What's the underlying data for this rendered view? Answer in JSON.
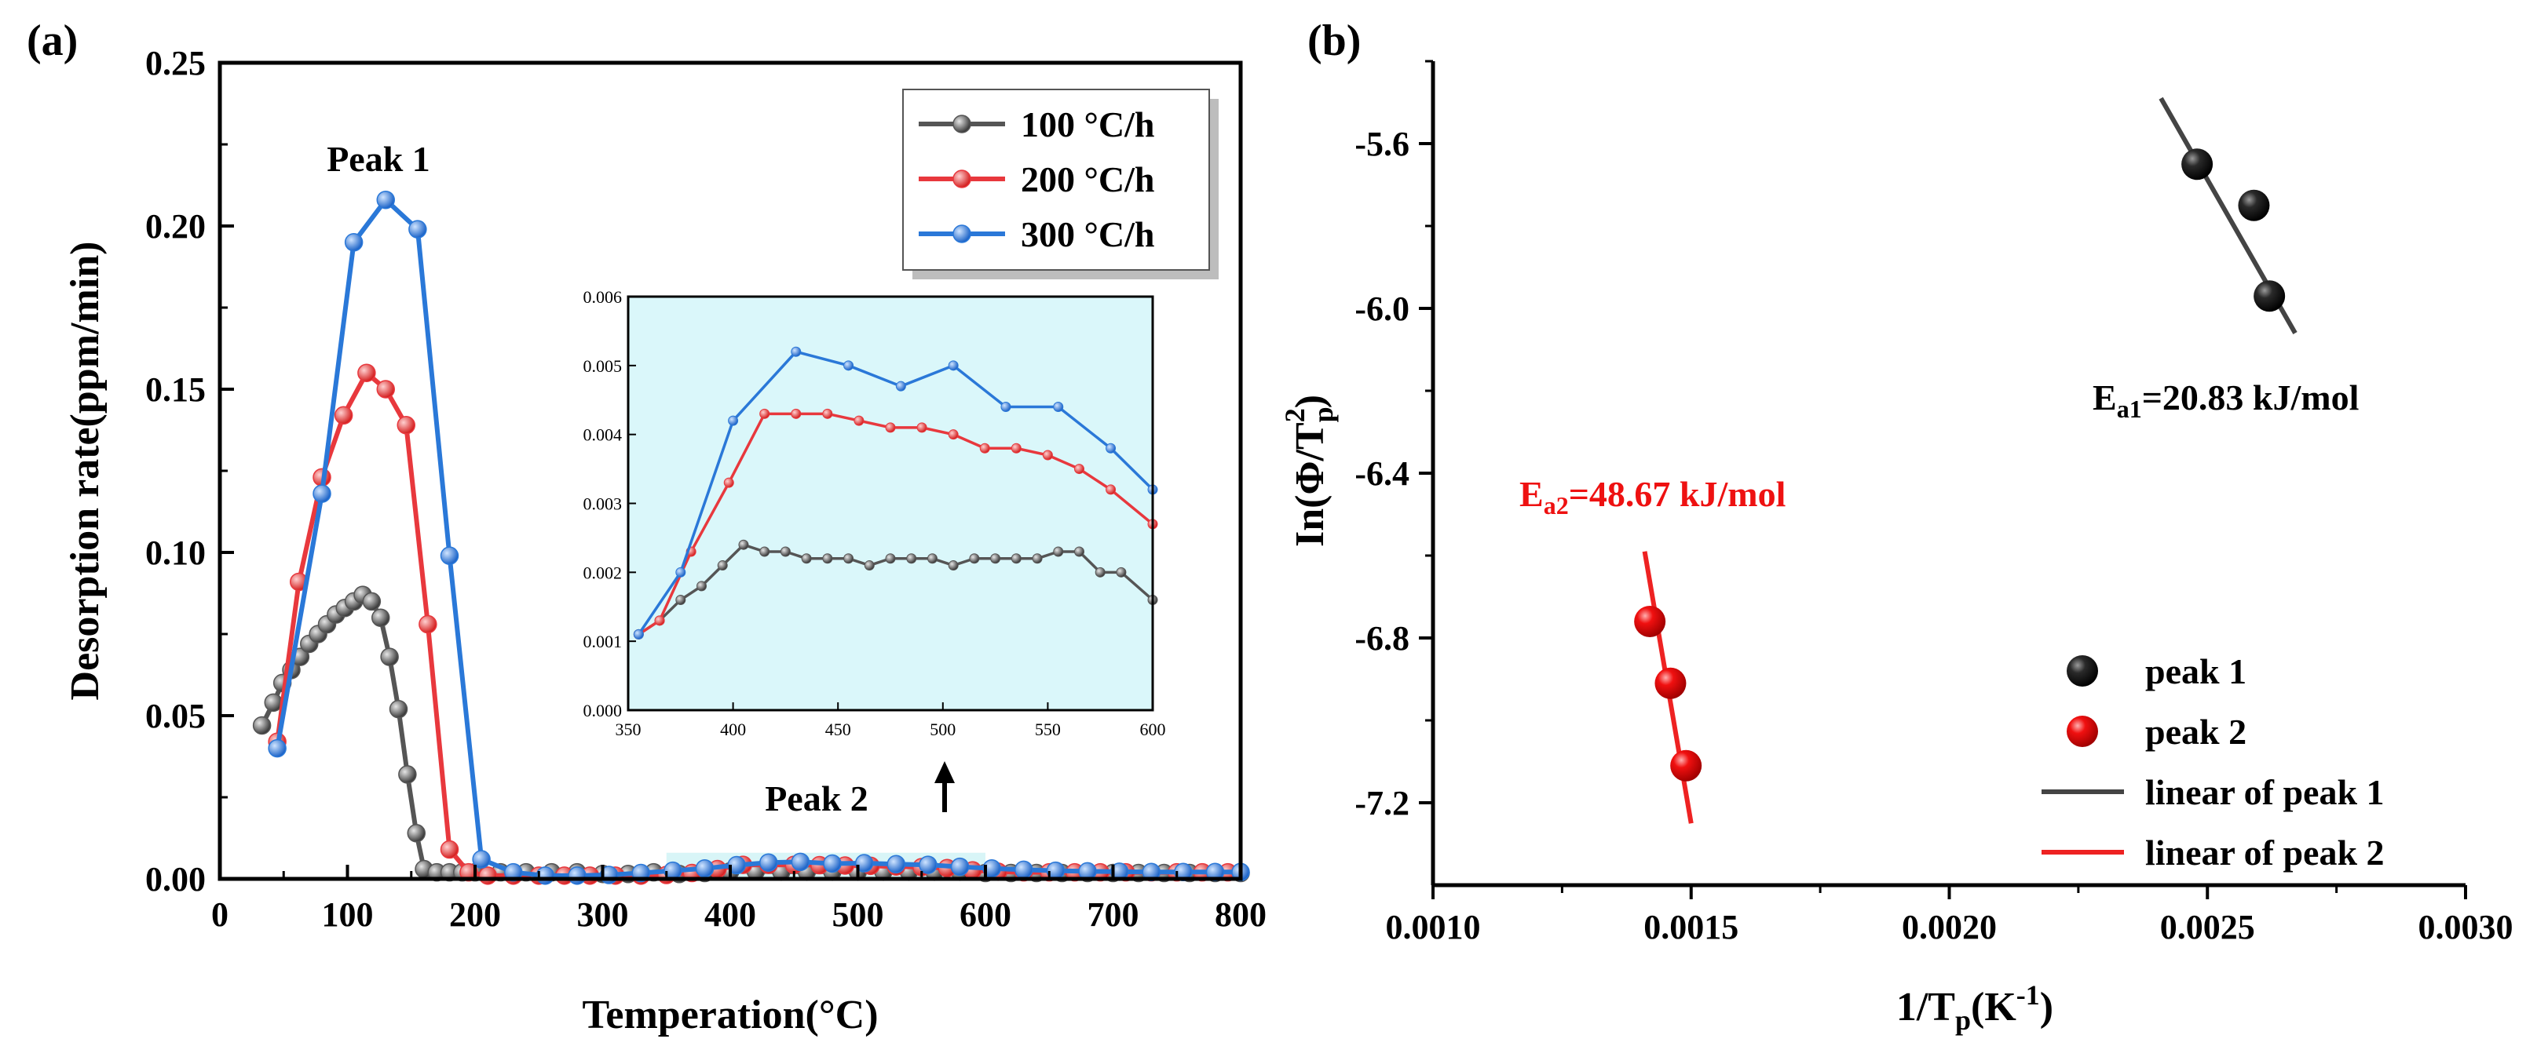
{
  "chart_data": [
    {
      "id": "a",
      "panel_label": "(a)",
      "type": "line",
      "xlabel": "Temperation(°C)",
      "ylabel": "Desorption rate(ppm/min)",
      "xlim": [
        0,
        800
      ],
      "ylim": [
        0,
        0.25
      ],
      "xticks": [
        "0",
        "100",
        "200",
        "300",
        "400",
        "500",
        "600",
        "700",
        "800"
      ],
      "yticks": [
        "0.00",
        "0.05",
        "0.10",
        "0.15",
        "0.20",
        "0.25"
      ],
      "annotations": [
        "Peak 1",
        "Peak 2"
      ],
      "legend_position": "top-right",
      "series": [
        {
          "name": "100 °C/h",
          "color": "#555555",
          "x": [
            33,
            42,
            49,
            56,
            63,
            70,
            77,
            84,
            91,
            98,
            105,
            112,
            119,
            126,
            133,
            140,
            147,
            154,
            160,
            170,
            180,
            190,
            200,
            220,
            240,
            260,
            280,
            300,
            320,
            340,
            360,
            380,
            400,
            420,
            440,
            460,
            480,
            500,
            520,
            540,
            560,
            580,
            600,
            620,
            640,
            660,
            680,
            700,
            720,
            740,
            760,
            780,
            800
          ],
          "y": [
            0.047,
            0.054,
            0.06,
            0.064,
            0.068,
            0.072,
            0.075,
            0.078,
            0.081,
            0.083,
            0.085,
            0.087,
            0.085,
            0.08,
            0.068,
            0.052,
            0.032,
            0.014,
            0.003,
            0.002,
            0.002,
            0.002,
            0.002,
            0.002,
            0.002,
            0.002,
            0.002,
            0.0015,
            0.0015,
            0.002,
            0.0015,
            0.0018,
            0.0023,
            0.0023,
            0.0022,
            0.0022,
            0.0022,
            0.0022,
            0.0022,
            0.0022,
            0.0022,
            0.0022,
            0.0018,
            0.0018,
            0.0018,
            0.0018,
            0.0018,
            0.0018,
            0.0018,
            0.0018,
            0.0018,
            0.0018,
            0.0018
          ]
        },
        {
          "name": "200 °C/h",
          "color": "#e8383d",
          "x": [
            45,
            62,
            80,
            97,
            115,
            130,
            146,
            163,
            180,
            195,
            210,
            230,
            250,
            270,
            290,
            310,
            330,
            350,
            370,
            390,
            410,
            430,
            450,
            470,
            490,
            510,
            530,
            550,
            570,
            590,
            610,
            630,
            650,
            670,
            690,
            710,
            730,
            750,
            770,
            790
          ],
          "y": [
            0.042,
            0.091,
            0.123,
            0.142,
            0.155,
            0.15,
            0.139,
            0.078,
            0.009,
            0.002,
            0.001,
            0.001,
            0.001,
            0.001,
            0.001,
            0.001,
            0.001,
            0.0012,
            0.0018,
            0.003,
            0.0043,
            0.0043,
            0.0043,
            0.0042,
            0.0041,
            0.004,
            0.0038,
            0.0036,
            0.0033,
            0.0026,
            0.0022,
            0.002,
            0.002,
            0.002,
            0.002,
            0.002,
            0.002,
            0.002,
            0.002,
            0.002
          ]
        },
        {
          "name": "300 °C/h",
          "color": "#2a78d8",
          "x": [
            45,
            80,
            105,
            130,
            155,
            180,
            205,
            230,
            255,
            280,
            305,
            330,
            355,
            380,
            405,
            430,
            455,
            480,
            505,
            530,
            555,
            580,
            605,
            630,
            655,
            680,
            705,
            730,
            755,
            780,
            800
          ],
          "y": [
            0.04,
            0.118,
            0.195,
            0.208,
            0.199,
            0.099,
            0.006,
            0.002,
            0.001,
            0.001,
            0.0012,
            0.0018,
            0.0025,
            0.0032,
            0.0042,
            0.005,
            0.0052,
            0.0047,
            0.0048,
            0.0045,
            0.0043,
            0.0037,
            0.0032,
            0.0028,
            0.0025,
            0.0023,
            0.0022,
            0.0021,
            0.0021,
            0.0021,
            0.0021
          ]
        }
      ],
      "peak2_region": [
        350,
        600
      ],
      "inset": {
        "type": "line",
        "xlim": [
          350,
          600
        ],
        "ylim": [
          0,
          0.006
        ],
        "xticks": [
          "350",
          "400",
          "450",
          "500",
          "550",
          "600"
        ],
        "yticks": [
          "0.000",
          "0.001",
          "0.002",
          "0.003",
          "0.004",
          "0.005",
          "0.006"
        ],
        "series": [
          {
            "name": "100 °C/h",
            "x": [
              355,
              365,
              375,
              385,
              395,
              405,
              415,
              425,
              435,
              445,
              455,
              465,
              475,
              485,
              495,
              505,
              515,
              525,
              535,
              545,
              555,
              565,
              575,
              585,
              600
            ],
            "y": [
              0.0011,
              0.0013,
              0.0016,
              0.0018,
              0.0021,
              0.0024,
              0.0023,
              0.0023,
              0.0022,
              0.0022,
              0.0022,
              0.0021,
              0.0022,
              0.0022,
              0.0022,
              0.0021,
              0.0022,
              0.0022,
              0.0022,
              0.0022,
              0.0023,
              0.0023,
              0.002,
              0.002,
              0.0016
            ]
          },
          {
            "name": "200 °C/h",
            "x": [
              355,
              365,
              380,
              398,
              415,
              430,
              445,
              460,
              475,
              490,
              505,
              520,
              535,
              550,
              565,
              580,
              600
            ],
            "y": [
              0.0011,
              0.0013,
              0.0023,
              0.0033,
              0.0043,
              0.0043,
              0.0043,
              0.0042,
              0.0041,
              0.0041,
              0.004,
              0.0038,
              0.0038,
              0.0037,
              0.0035,
              0.0032,
              0.0027
            ]
          },
          {
            "name": "300 °C/h",
            "x": [
              355,
              375,
              400,
              430,
              455,
              480,
              505,
              530,
              555,
              580,
              600
            ],
            "y": [
              0.0011,
              0.002,
              0.0042,
              0.0052,
              0.005,
              0.0047,
              0.005,
              0.0044,
              0.0044,
              0.0038,
              0.0032
            ]
          }
        ]
      }
    },
    {
      "id": "b",
      "panel_label": "(b)",
      "type": "scatter",
      "xlabel_main": "1/T",
      "xlabel_sub": "p",
      "xlabel_rest": "(K",
      "xlabel_sup": "-1",
      "xlabel_end": ")",
      "ylabel_main": "In(Φ/T",
      "ylabel_sub": "p",
      "ylabel_sup": "2",
      "ylabel_end": ")",
      "xlim": [
        0.001,
        0.003
      ],
      "ylim": [
        -7.4,
        -5.4
      ],
      "xticks": [
        "0.0010",
        "0.0015",
        "0.0020",
        "0.0025",
        "0.0030"
      ],
      "yticks": [
        "-5.6",
        "-6.0",
        "-6.4",
        "-6.8",
        "-7.2"
      ],
      "ytick_values": [
        -5.6,
        -6.0,
        -6.4,
        -6.8,
        -7.2
      ],
      "legend_position": "bottom-right",
      "series": [
        {
          "name": "peak 1",
          "color": "#111111",
          "x": [
            0.00248,
            0.00259,
            0.00262
          ],
          "y": [
            -5.65,
            -5.75,
            -5.97
          ]
        },
        {
          "name": "peak 2",
          "color": "#ee1111",
          "x": [
            0.00142,
            0.00146,
            0.00149
          ],
          "y": [
            -6.76,
            -6.91,
            -7.11
          ]
        }
      ],
      "fits": [
        {
          "name": "linear of peak 1",
          "color": "#444444",
          "x": [
            0.00241,
            0.00267
          ],
          "y": [
            -5.49,
            -6.06
          ]
        },
        {
          "name": "linear of peak 2",
          "color": "#ee2222",
          "x": [
            0.00141,
            0.0015
          ],
          "y": [
            -6.59,
            -7.25
          ]
        }
      ],
      "annotations": {
        "ea1": {
          "main": "E",
          "sub": "a1",
          "rest": "=20.83 kJ/mol"
        },
        "ea2": {
          "main": "E",
          "sub": "a2",
          "rest": "=48.67 kJ/mol"
        }
      }
    }
  ]
}
